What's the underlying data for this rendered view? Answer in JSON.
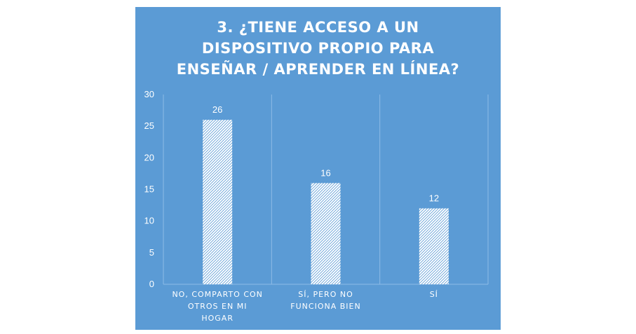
{
  "chart_data": {
    "type": "bar",
    "title_lines": [
      "3. ¿TIENE ACCESO A UN",
      "DISPOSITIVO PROPIO PARA",
      "ENSEÑAR / APRENDER EN LÍNEA?"
    ],
    "categories": [
      "NO, COMPARTO CON OTROS EN MI HOGAR",
      "SÍ, PERO NO FUNCIONA BIEN",
      "SÍ"
    ],
    "category_label_lines": [
      [
        "NO, COMPARTO CON",
        "OTROS EN MI",
        "HOGAR"
      ],
      [
        "SÍ, PERO NO",
        "FUNCIONA BIEN"
      ],
      [
        "SÍ"
      ]
    ],
    "values": [
      26,
      16,
      12
    ],
    "data_labels": [
      "26",
      "16",
      "12"
    ],
    "ylim": [
      0,
      30
    ],
    "yticks": [
      "0",
      "5",
      "10",
      "15",
      "20",
      "25",
      "30"
    ],
    "xlabel": "",
    "ylabel": "",
    "grid": true,
    "legend": "none",
    "colors": {
      "background": "#5b9bd5",
      "bar_fill": "#ffffff",
      "bar_pattern": "#5b9bd5",
      "text": "#ffffff",
      "grid": "#8ebbe6"
    }
  }
}
